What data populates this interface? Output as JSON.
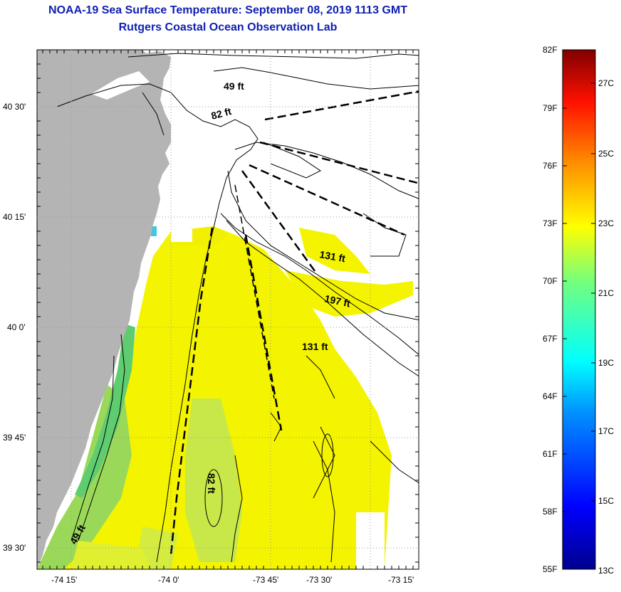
{
  "title": "NOAA-19 Sea Surface Temperature:  September 08, 2019 1113 GMT",
  "subtitle": "Rutgers Coastal Ocean Observation Lab",
  "lat_labels": [
    "40 30'",
    "40 15'",
    "40 0'",
    "39 45'",
    "39 30'"
  ],
  "lon_labels": [
    "-74 15'",
    "-74 0'",
    "-73 45'",
    "-73 30'",
    "-73 15'"
  ],
  "depth_labels": [
    "49 ft",
    "82 ft",
    "131 ft",
    "197 ft",
    "131 ft",
    "82 ft",
    "49 ft"
  ],
  "colorbar": {
    "fahrenheit": [
      "82F",
      "79F",
      "76F",
      "73F",
      "70F",
      "67F",
      "64F",
      "61F",
      "58F",
      "55F"
    ],
    "celsius": [
      "27C",
      "25C",
      "23C",
      "21C",
      "19C",
      "17C",
      "15C",
      "13C"
    ]
  },
  "colors": {
    "title": "#1020b0",
    "land": "#b4b4b4",
    "sst_warm": "#f4f400",
    "sst_mid": "#c8e84a",
    "sst_cool": "#60cc70"
  }
}
